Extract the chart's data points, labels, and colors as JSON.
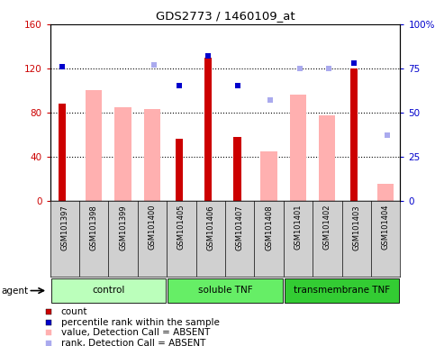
{
  "title": "GDS2773 / 1460109_at",
  "samples": [
    "GSM101397",
    "GSM101398",
    "GSM101399",
    "GSM101400",
    "GSM101405",
    "GSM101406",
    "GSM101407",
    "GSM101408",
    "GSM101401",
    "GSM101402",
    "GSM101403",
    "GSM101404"
  ],
  "groups": [
    {
      "name": "control",
      "start": 0,
      "end": 4,
      "color": "#bbffbb"
    },
    {
      "name": "soluble TNF",
      "start": 4,
      "end": 8,
      "color": "#66ee66"
    },
    {
      "name": "transmembrane TNF",
      "start": 8,
      "end": 12,
      "color": "#33cc33"
    }
  ],
  "count_values": [
    88,
    null,
    null,
    null,
    56,
    130,
    58,
    null,
    null,
    null,
    120,
    null
  ],
  "count_color": "#cc0000",
  "percentile_values": [
    76,
    null,
    null,
    null,
    65,
    82,
    65,
    null,
    null,
    null,
    78,
    null
  ],
  "percentile_color": "#0000cc",
  "absent_value_values": [
    null,
    100,
    85,
    83,
    null,
    null,
    null,
    45,
    96,
    77,
    null,
    15
  ],
  "absent_value_color": "#ffb0b0",
  "absent_rank_values": [
    null,
    null,
    null,
    77,
    null,
    null,
    null,
    57,
    75,
    75,
    null,
    37
  ],
  "absent_rank_color": "#aaaaee",
  "ylim_left": [
    0,
    160
  ],
  "ylim_right": [
    0,
    100
  ],
  "yticks_left": [
    0,
    40,
    80,
    120,
    160
  ],
  "ytick_labels_left": [
    "0",
    "40",
    "80",
    "120",
    "160"
  ],
  "yticks_right": [
    0,
    25,
    50,
    75,
    100
  ],
  "ytick_labels_right": [
    "0",
    "25",
    "50",
    "75",
    "100%"
  ],
  "left_axis_color": "#cc0000",
  "right_axis_color": "#0000cc",
  "grid_yticks": [
    40,
    80,
    120
  ],
  "background_color": "#ffffff",
  "legend_items": [
    {
      "label": "count",
      "color": "#cc0000"
    },
    {
      "label": "percentile rank within the sample",
      "color": "#0000cc"
    },
    {
      "label": "value, Detection Call = ABSENT",
      "color": "#ffb0b0"
    },
    {
      "label": "rank, Detection Call = ABSENT",
      "color": "#aaaaee"
    }
  ]
}
